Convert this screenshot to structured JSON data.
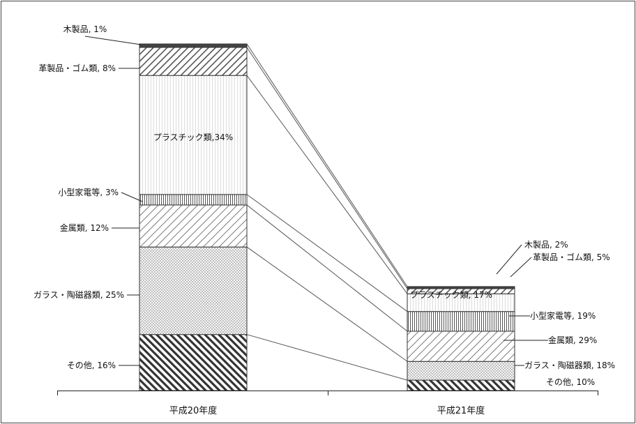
{
  "chart_data": {
    "type": "bar",
    "stacked": true,
    "categories": [
      "平成20年度",
      "平成21年度"
    ],
    "series": [
      {
        "name": "その他",
        "values": [
          16,
          10
        ],
        "labels": [
          "その他, 16%",
          "その他, 10%"
        ],
        "pattern": "diag-dense"
      },
      {
        "name": "ガラス・陶磁器類",
        "values": [
          25,
          18
        ],
        "labels": [
          "ガラス・陶磁器類, 25%",
          "ガラス・陶磁器類, 18%"
        ],
        "pattern": "dots"
      },
      {
        "name": "金属類",
        "values": [
          12,
          29
        ],
        "labels": [
          "金属類, 12%",
          "金属類, 29%"
        ],
        "pattern": "diag-light"
      },
      {
        "name": "小型家電等",
        "values": [
          3,
          19
        ],
        "labels": [
          "小型家電等, 3%",
          "小型家電等, 19%"
        ],
        "pattern": "vertical-dense"
      },
      {
        "name": "プラスチック類",
        "values": [
          34,
          17
        ],
        "labels": [
          "プラスチック類,34%",
          "プラスチック類, 17%"
        ],
        "pattern": "vertical-light"
      },
      {
        "name": "革製品・ゴム類",
        "values": [
          8,
          5
        ],
        "labels": [
          "革製品・ゴム類, 8%",
          "革製品・ゴム類, 5%"
        ],
        "pattern": "diag-medium"
      },
      {
        "name": "木製品",
        "values": [
          1,
          2
        ],
        "labels": [
          "木製品, 1%",
          "木製品, 2%"
        ],
        "pattern": "solid-dark"
      }
    ],
    "totals_relative": [
      1.0,
      0.3
    ],
    "series_lines": true,
    "grid": false,
    "legend": "none",
    "border": true,
    "colors": {
      "stroke": "#333333",
      "line": "#555555",
      "dark": "#444444"
    }
  }
}
